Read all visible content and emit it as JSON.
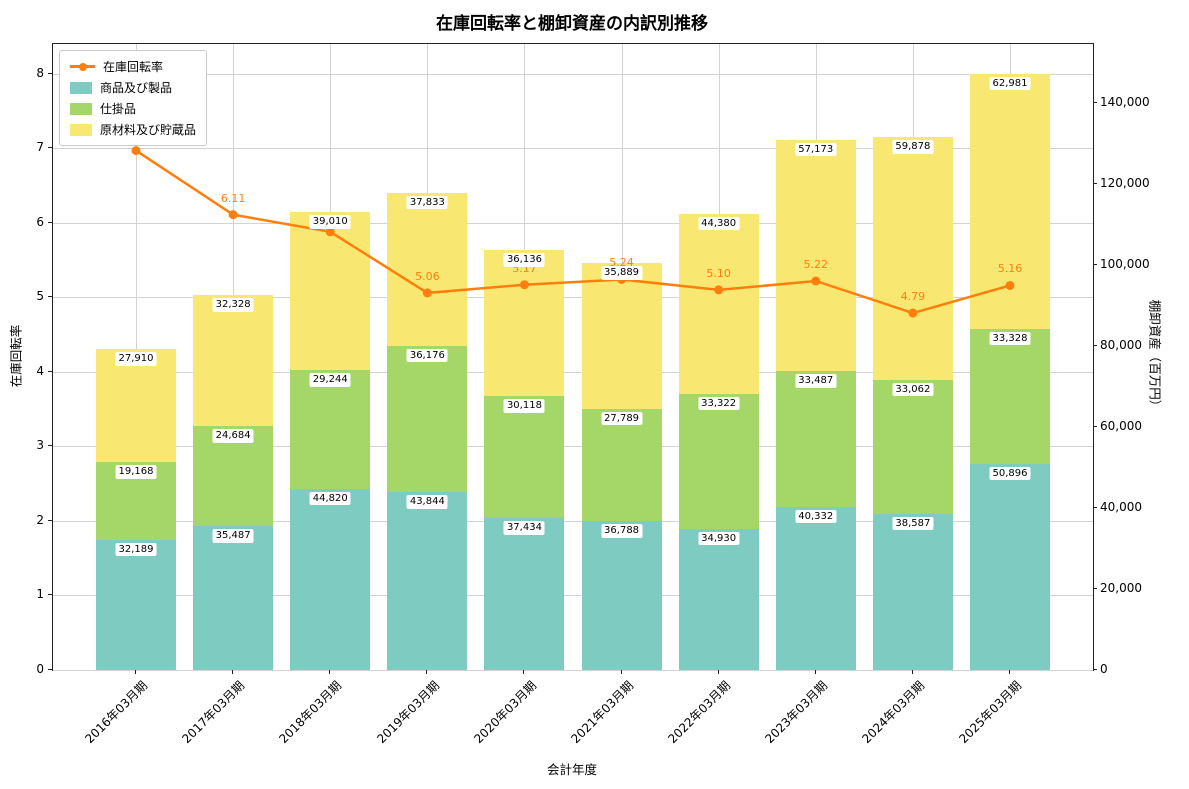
{
  "title": "在庫回転率と棚卸資産の内訳別推移",
  "axes": {
    "x_label": "会計年度",
    "y_left_label": "在庫回転率",
    "y_right_label": "棚卸資産（百万円）",
    "left_ticks": [
      {
        "v": 0,
        "label": "0"
      },
      {
        "v": 1,
        "label": "1"
      },
      {
        "v": 2,
        "label": "2"
      },
      {
        "v": 3,
        "label": "3"
      },
      {
        "v": 4,
        "label": "4"
      },
      {
        "v": 5,
        "label": "5"
      },
      {
        "v": 6,
        "label": "6"
      },
      {
        "v": 7,
        "label": "7"
      },
      {
        "v": 8,
        "label": "8"
      }
    ],
    "right_ticks": [
      {
        "v": 0,
        "label": "0"
      },
      {
        "v": 20000,
        "label": "20,000"
      },
      {
        "v": 40000,
        "label": "40,000"
      },
      {
        "v": 60000,
        "label": "60,000"
      },
      {
        "v": 80000,
        "label": "80,000"
      },
      {
        "v": 100000,
        "label": "100,000"
      },
      {
        "v": 120000,
        "label": "120,000"
      },
      {
        "v": 140000,
        "label": "140,000"
      }
    ]
  },
  "legend": {
    "items": [
      {
        "label": "在庫回転率",
        "marker": "line",
        "color": "#ff7f0e"
      },
      {
        "label": "商品及び製品",
        "marker": "patch",
        "color": "#7ecbc2"
      },
      {
        "label": "仕掛品",
        "marker": "patch",
        "color": "#a5d768"
      },
      {
        "label": "原材料及び貯蔵品",
        "marker": "patch",
        "color": "#f8e871"
      }
    ]
  },
  "chart_data": {
    "type": "combo-stacked-bar-line",
    "categories": [
      "2016年03月期",
      "2017年03月期",
      "2018年03月期",
      "2019年03月期",
      "2020年03月期",
      "2021年03月期",
      "2022年03月期",
      "2023年03月期",
      "2024年03月期",
      "2025年03月期"
    ],
    "bar_series": [
      {
        "name": "商品及び製品",
        "axis": "right",
        "color": "#7ecbc2",
        "values": [
          32189,
          35487,
          44820,
          43844,
          37434,
          36788,
          34930,
          40332,
          38587,
          50896
        ]
      },
      {
        "name": "仕掛品",
        "axis": "right",
        "color": "#a5d768",
        "values": [
          19168,
          24684,
          29244,
          36176,
          30118,
          27789,
          33322,
          33487,
          33062,
          33328
        ]
      },
      {
        "name": "原材料及び貯蔵品",
        "axis": "right",
        "color": "#f8e871",
        "values": [
          27910,
          32328,
          39010,
          37833,
          36136,
          35889,
          44380,
          57173,
          59878,
          62981
        ]
      }
    ],
    "line_series": {
      "name": "在庫回転率",
      "axis": "left",
      "color": "#ff7f0e",
      "values": [
        6.97,
        6.11,
        5.88,
        5.06,
        5.17,
        5.24,
        5.1,
        5.22,
        4.79,
        5.16
      ],
      "point_labels": [
        "",
        "6.11",
        "",
        "5.06",
        "5.17",
        "5.24",
        "5.10",
        "5.22",
        "4.79",
        "5.16"
      ]
    },
    "ylim_left": [
      0,
      8.4
    ],
    "ylim_right": [
      0,
      154600
    ],
    "grid": true,
    "legend_position": "upper-left"
  }
}
